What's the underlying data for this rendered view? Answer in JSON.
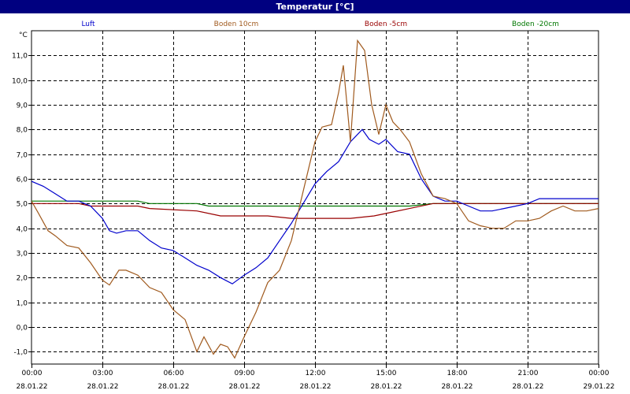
{
  "window": {
    "title": "Temperatur [°C]"
  },
  "chart_data": {
    "type": "line",
    "title": "Temperatur [°C]",
    "ylabel": "°C",
    "xlabel": "",
    "xlim": [
      "28.01.22 00:00",
      "29.01.22 00:00"
    ],
    "ylim": [
      -1.5,
      12.0
    ],
    "grid": true,
    "legend_position": "top",
    "x_ticks": [
      {
        "time": "00:00",
        "date": "28.01.22",
        "h": 0
      },
      {
        "time": "03:00",
        "date": "28.01.22",
        "h": 3
      },
      {
        "time": "06:00",
        "date": "28.01.22",
        "h": 6
      },
      {
        "time": "09:00",
        "date": "28.01.22",
        "h": 9
      },
      {
        "time": "12:00",
        "date": "28.01.22",
        "h": 12
      },
      {
        "time": "15:00",
        "date": "28.01.22",
        "h": 15
      },
      {
        "time": "18:00",
        "date": "28.01.22",
        "h": 18
      },
      {
        "time": "21:00",
        "date": "28.01.22",
        "h": 21
      },
      {
        "time": "00:00",
        "date": "29.01.22",
        "h": 24
      }
    ],
    "y_ticks": [
      {
        "label": "-1,0",
        "v": -1
      },
      {
        "label": "0,0",
        "v": 0
      },
      {
        "label": "1,0",
        "v": 1
      },
      {
        "label": "2,0",
        "v": 2
      },
      {
        "label": "3,0",
        "v": 3
      },
      {
        "label": "4,0",
        "v": 4
      },
      {
        "label": "5,0",
        "v": 5
      },
      {
        "label": "6,0",
        "v": 6
      },
      {
        "label": "7,0",
        "v": 7
      },
      {
        "label": "8,0",
        "v": 8
      },
      {
        "label": "9,0",
        "v": 9
      },
      {
        "label": "10,0",
        "v": 10
      },
      {
        "label": "11,0",
        "v": 11
      }
    ],
    "series": [
      {
        "name": "Luft",
        "color": "#0000cc",
        "points": [
          [
            0,
            5.9
          ],
          [
            0.5,
            5.7
          ],
          [
            1.0,
            5.4
          ],
          [
            1.5,
            5.1
          ],
          [
            2.0,
            5.1
          ],
          [
            2.5,
            4.9
          ],
          [
            3.0,
            4.4
          ],
          [
            3.3,
            3.9
          ],
          [
            3.6,
            3.8
          ],
          [
            4.0,
            3.9
          ],
          [
            4.5,
            3.9
          ],
          [
            5.0,
            3.5
          ],
          [
            5.5,
            3.2
          ],
          [
            6.0,
            3.1
          ],
          [
            6.5,
            2.8
          ],
          [
            7.0,
            2.5
          ],
          [
            7.5,
            2.3
          ],
          [
            8.0,
            2.0
          ],
          [
            8.5,
            1.75
          ],
          [
            9.0,
            2.1
          ],
          [
            9.5,
            2.4
          ],
          [
            10.0,
            2.8
          ],
          [
            10.5,
            3.5
          ],
          [
            11.0,
            4.2
          ],
          [
            11.5,
            5.0
          ],
          [
            12.0,
            5.8
          ],
          [
            12.5,
            6.3
          ],
          [
            13.0,
            6.7
          ],
          [
            13.5,
            7.5
          ],
          [
            14.0,
            8.0
          ],
          [
            14.3,
            7.6
          ],
          [
            14.7,
            7.4
          ],
          [
            15.0,
            7.6
          ],
          [
            15.5,
            7.1
          ],
          [
            16.0,
            7.0
          ],
          [
            16.5,
            6.0
          ],
          [
            17.0,
            5.3
          ],
          [
            17.5,
            5.1
          ],
          [
            18.0,
            5.1
          ],
          [
            18.5,
            4.9
          ],
          [
            19.0,
            4.7
          ],
          [
            19.5,
            4.7
          ],
          [
            20.0,
            4.8
          ],
          [
            20.5,
            4.9
          ],
          [
            21.0,
            5.0
          ],
          [
            21.5,
            5.2
          ],
          [
            22.0,
            5.2
          ],
          [
            22.5,
            5.2
          ],
          [
            23.0,
            5.2
          ],
          [
            24.0,
            5.2
          ]
        ]
      },
      {
        "name": "Boden 10cm",
        "color": "#a05a1e",
        "points": [
          [
            0,
            5.1
          ],
          [
            0.3,
            4.6
          ],
          [
            0.7,
            3.9
          ],
          [
            1.0,
            3.7
          ],
          [
            1.5,
            3.3
          ],
          [
            2.0,
            3.2
          ],
          [
            2.5,
            2.6
          ],
          [
            3.0,
            1.9
          ],
          [
            3.3,
            1.7
          ],
          [
            3.7,
            2.3
          ],
          [
            4.0,
            2.3
          ],
          [
            4.5,
            2.1
          ],
          [
            5.0,
            1.6
          ],
          [
            5.5,
            1.4
          ],
          [
            6.0,
            0.7
          ],
          [
            6.5,
            0.3
          ],
          [
            7.0,
            -1.0
          ],
          [
            7.3,
            -0.4
          ],
          [
            7.7,
            -1.1
          ],
          [
            8.0,
            -0.7
          ],
          [
            8.3,
            -0.8
          ],
          [
            8.6,
            -1.25
          ],
          [
            9.0,
            -0.4
          ],
          [
            9.5,
            0.6
          ],
          [
            10.0,
            1.8
          ],
          [
            10.5,
            2.3
          ],
          [
            11.0,
            3.5
          ],
          [
            11.5,
            5.5
          ],
          [
            12.0,
            7.5
          ],
          [
            12.3,
            8.1
          ],
          [
            12.7,
            8.2
          ],
          [
            13.0,
            9.5
          ],
          [
            13.2,
            10.6
          ],
          [
            13.5,
            7.5
          ],
          [
            13.8,
            11.6
          ],
          [
            14.1,
            11.2
          ],
          [
            14.4,
            9.0
          ],
          [
            14.7,
            7.8
          ],
          [
            15.0,
            9.0
          ],
          [
            15.3,
            8.3
          ],
          [
            15.6,
            8.0
          ],
          [
            16.0,
            7.5
          ],
          [
            16.5,
            6.2
          ],
          [
            17.0,
            5.3
          ],
          [
            17.5,
            5.2
          ],
          [
            18.0,
            5.0
          ],
          [
            18.5,
            4.3
          ],
          [
            19.0,
            4.1
          ],
          [
            19.5,
            4.0
          ],
          [
            20.0,
            4.0
          ],
          [
            20.5,
            4.3
          ],
          [
            21.0,
            4.3
          ],
          [
            21.5,
            4.4
          ],
          [
            22.0,
            4.7
          ],
          [
            22.5,
            4.9
          ],
          [
            23.0,
            4.7
          ],
          [
            23.5,
            4.7
          ],
          [
            24.0,
            4.8
          ]
        ]
      },
      {
        "name": "Boden -5cm",
        "color": "#990000",
        "points": [
          [
            0,
            5.0
          ],
          [
            2.0,
            5.0
          ],
          [
            2.5,
            4.9
          ],
          [
            4.5,
            4.9
          ],
          [
            5.0,
            4.8
          ],
          [
            7.0,
            4.7
          ],
          [
            8.0,
            4.5
          ],
          [
            10.0,
            4.5
          ],
          [
            11.0,
            4.4
          ],
          [
            12.0,
            4.4
          ],
          [
            13.5,
            4.4
          ],
          [
            14.5,
            4.5
          ],
          [
            15.0,
            4.6
          ],
          [
            16.0,
            4.8
          ],
          [
            17.0,
            5.0
          ],
          [
            18.0,
            5.0
          ],
          [
            24.0,
            5.0
          ]
        ]
      },
      {
        "name": "Boden -20cm",
        "color": "#007700",
        "points": [
          [
            0,
            5.1
          ],
          [
            4.5,
            5.1
          ],
          [
            5.0,
            5.0
          ],
          [
            7.0,
            5.0
          ],
          [
            7.5,
            4.9
          ],
          [
            16.0,
            4.9
          ],
          [
            17.0,
            5.0
          ],
          [
            24.0,
            5.0
          ]
        ]
      }
    ]
  }
}
